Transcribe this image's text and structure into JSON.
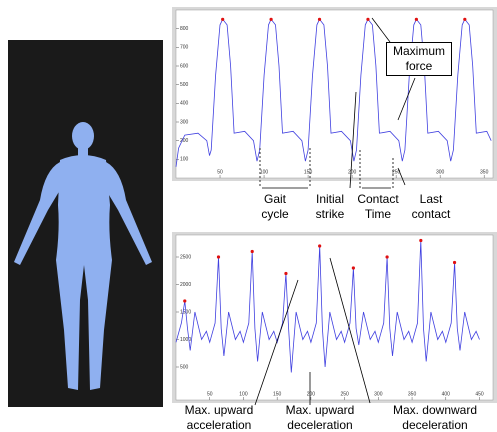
{
  "chart_data": [
    {
      "type": "line",
      "color": "#4040e0",
      "marker_color": "#e01010",
      "x": [
        0,
        3,
        10,
        25,
        35,
        38,
        40,
        45,
        50,
        53,
        58,
        62,
        66,
        78,
        88,
        92,
        95,
        100,
        105,
        108,
        113,
        117,
        121,
        133,
        143,
        147,
        150,
        155,
        160,
        163,
        168,
        172,
        176,
        188,
        198,
        202,
        205,
        210,
        215,
        218,
        223,
        227,
        231,
        243,
        253,
        257,
        260,
        265,
        270,
        273,
        278,
        282,
        286,
        298,
        308,
        312,
        315,
        320,
        325,
        328,
        333,
        337,
        341,
        353,
        358
      ],
      "values": [
        60,
        160,
        230,
        240,
        200,
        120,
        150,
        550,
        820,
        850,
        820,
        600,
        240,
        250,
        200,
        90,
        150,
        550,
        820,
        850,
        820,
        600,
        240,
        250,
        200,
        90,
        150,
        550,
        820,
        850,
        820,
        600,
        240,
        250,
        200,
        90,
        150,
        550,
        820,
        850,
        820,
        600,
        240,
        250,
        200,
        90,
        150,
        550,
        820,
        850,
        820,
        600,
        240,
        250,
        200,
        90,
        150,
        550,
        820,
        850,
        820,
        600,
        240,
        250,
        200
      ],
      "peak_x": [
        53,
        108,
        163,
        218,
        273,
        328
      ],
      "peak_values": [
        850,
        850,
        850,
        850,
        850,
        850
      ],
      "xlim": [
        0,
        360
      ],
      "xticks": [
        50,
        100,
        150,
        200,
        250,
        300,
        350
      ],
      "ylim": [
        0,
        900
      ],
      "yticks": [
        100,
        200,
        300,
        400,
        500,
        600,
        700,
        800
      ],
      "annotations": [
        "Maximum force",
        "Gait cycle",
        "Initial strike",
        "Contact Time",
        "Last contact"
      ]
    },
    {
      "type": "line",
      "color": "#4040e0",
      "marker_color": "#e01010",
      "x": [
        0,
        8,
        13,
        17,
        21,
        28,
        38,
        45,
        50,
        58,
        63,
        67,
        71,
        78,
        88,
        95,
        100,
        108,
        113,
        117,
        121,
        128,
        138,
        145,
        150,
        158,
        163,
        167,
        171,
        178,
        188,
        195,
        200,
        208,
        213,
        217,
        221,
        228,
        238,
        245,
        250,
        258,
        263,
        267,
        271,
        278,
        288,
        295,
        300,
        308,
        313,
        317,
        321,
        328,
        338,
        345,
        350,
        358,
        363,
        367,
        371,
        378,
        388,
        395,
        400,
        408,
        413,
        417,
        421,
        428,
        438,
        445,
        450
      ],
      "values": [
        950,
        1300,
        1700,
        1200,
        800,
        1500,
        1000,
        1150,
        950,
        1300,
        2500,
        1200,
        700,
        1500,
        1000,
        1150,
        950,
        1300,
        2600,
        1200,
        600,
        1500,
        1000,
        1150,
        950,
        1300,
        2200,
        1200,
        400,
        1500,
        1000,
        1150,
        950,
        1300,
        2700,
        1200,
        500,
        1500,
        1000,
        1150,
        950,
        1300,
        2300,
        1200,
        900,
        1500,
        1000,
        1150,
        950,
        1300,
        2500,
        1200,
        700,
        1500,
        1000,
        1150,
        950,
        1300,
        2800,
        1200,
        600,
        1500,
        1000,
        1150,
        950,
        1300,
        2400,
        1200,
        800,
        1500,
        1000,
        1150,
        1000
      ],
      "peak_x": [
        13,
        63,
        113,
        163,
        213,
        263,
        313,
        363,
        413
      ],
      "peak_values": [
        1700,
        2500,
        2600,
        2200,
        2700,
        2300,
        2500,
        2800,
        2400
      ],
      "xlim": [
        0,
        470
      ],
      "xticks": [
        50,
        100,
        150,
        200,
        250,
        300,
        350,
        400,
        450
      ],
      "ylim": [
        -100,
        2900
      ],
      "yticks": [
        500,
        1000,
        1500,
        2000,
        2500
      ],
      "annotations": [
        "Max. upward acceleration",
        "Max. upward deceleration",
        "Max. downward deceleration"
      ]
    }
  ]
}
